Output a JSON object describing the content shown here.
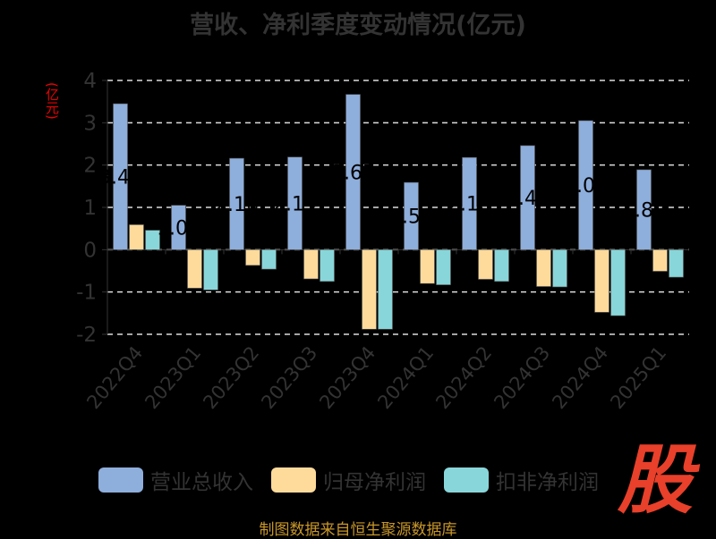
{
  "chart_data": {
    "type": "bar",
    "title": "营收、净利季度变动情况(亿元)",
    "ylabel": "(亿元)",
    "xlabel": "",
    "ylim": [
      -2,
      4
    ],
    "yticks": [
      "-2",
      "-1",
      "0",
      "1",
      "2",
      "3",
      "4"
    ],
    "grid": true,
    "legend_position": "bottom",
    "categories": [
      "2022Q4",
      "2023Q1",
      "2023Q2",
      "2023Q3",
      "2023Q4",
      "2024Q1",
      "2024Q2",
      "2024Q3",
      "2024Q4",
      "2025Q1"
    ],
    "series": [
      {
        "name": "营业总收入",
        "color": "#8eaedc",
        "values": [
          3.45,
          1.05,
          2.16,
          2.19,
          3.67,
          1.59,
          2.18,
          2.46,
          3.05,
          1.89
        ],
        "labels": [
          "3.45",
          "1.05",
          "2.16",
          "2.19",
          "3.67",
          "1.59",
          "2.18",
          "2.46",
          "3.05",
          "1.89"
        ]
      },
      {
        "name": "归母净利润",
        "color": "#fedb9b",
        "values": [
          0.59,
          -0.91,
          -0.37,
          -0.69,
          -1.88,
          -0.8,
          -0.7,
          -0.87,
          -1.48,
          -0.51
        ]
      },
      {
        "name": "扣非净利润",
        "color": "#88d6d9",
        "values": [
          0.46,
          -0.95,
          -0.46,
          -0.75,
          -1.88,
          -0.83,
          -0.75,
          -0.88,
          -1.56,
          -0.65
        ]
      }
    ]
  },
  "footer": "制图数据来自恒生聚源数据库",
  "logo_text": "股"
}
